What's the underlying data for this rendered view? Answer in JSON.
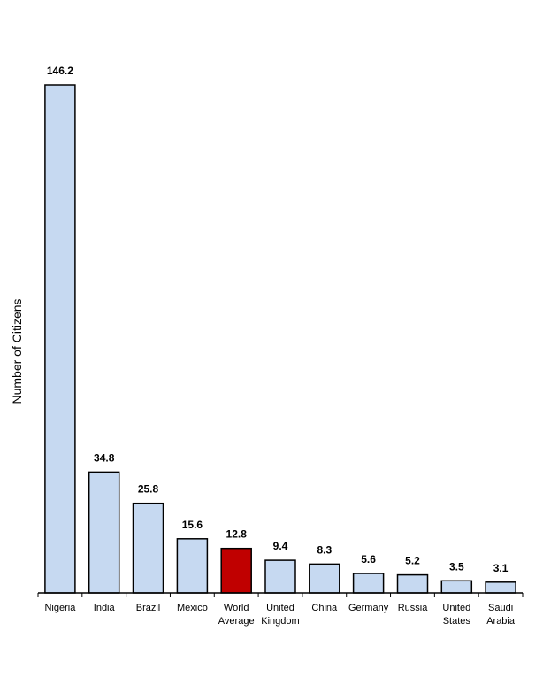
{
  "chart_data": {
    "type": "bar",
    "title": "",
    "xlabel": "",
    "ylabel": "Number of Citizens",
    "ylim": [
      0,
      146.2
    ],
    "grid": false,
    "categories": [
      [
        "Nigeria"
      ],
      [
        "India"
      ],
      [
        "Brazil"
      ],
      [
        "Mexico"
      ],
      [
        "World",
        "Average"
      ],
      [
        "United",
        "Kingdom"
      ],
      [
        "China"
      ],
      [
        "Germany"
      ],
      [
        "Russia"
      ],
      [
        "United",
        "States"
      ],
      [
        "Saudi",
        "Arabia"
      ]
    ],
    "values": [
      146.2,
      34.8,
      25.8,
      15.6,
      12.8,
      9.4,
      8.3,
      5.6,
      5.2,
      3.5,
      3.1
    ],
    "value_labels": [
      "146.2",
      "34.8",
      "25.8",
      "15.6",
      "12.8",
      "9.4",
      "8.3",
      "5.6",
      "5.2",
      "3.5",
      "3.1"
    ],
    "highlight_index": 4,
    "colors": {
      "bar": "#c6d9f1",
      "highlight": "#c00000",
      "outline": "#000000"
    }
  }
}
